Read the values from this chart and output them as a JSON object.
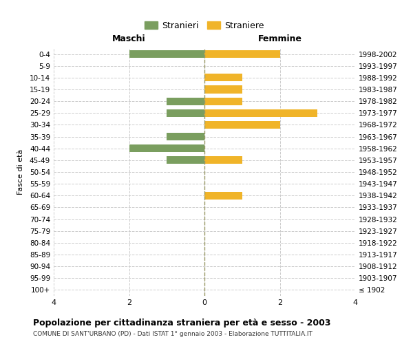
{
  "age_groups": [
    "100+",
    "95-99",
    "90-94",
    "85-89",
    "80-84",
    "75-79",
    "70-74",
    "65-69",
    "60-64",
    "55-59",
    "50-54",
    "45-49",
    "40-44",
    "35-39",
    "30-34",
    "25-29",
    "20-24",
    "15-19",
    "10-14",
    "5-9",
    "0-4"
  ],
  "birth_years": [
    "≤ 1902",
    "1903-1907",
    "1908-1912",
    "1913-1917",
    "1918-1922",
    "1923-1927",
    "1928-1932",
    "1933-1937",
    "1938-1942",
    "1943-1947",
    "1948-1952",
    "1953-1957",
    "1958-1962",
    "1963-1967",
    "1968-1972",
    "1973-1977",
    "1978-1982",
    "1983-1987",
    "1988-1992",
    "1993-1997",
    "1998-2002"
  ],
  "maschi": [
    0,
    0,
    0,
    0,
    0,
    0,
    0,
    0,
    0,
    0,
    0,
    1,
    2,
    1,
    0,
    1,
    1,
    0,
    0,
    0,
    2
  ],
  "femmine": [
    0,
    0,
    0,
    0,
    0,
    0,
    0,
    0,
    1,
    0,
    0,
    1,
    0,
    0,
    2,
    3,
    1,
    1,
    1,
    0,
    2
  ],
  "maschi_color": "#7a9e5f",
  "femmine_color": "#f0b429",
  "title": "Popolazione per cittadinanza straniera per età e sesso - 2003",
  "subtitle": "COMUNE DI SANT'URBANO (PD) - Dati ISTAT 1° gennaio 2003 - Elaborazione TUTTITALIA.IT",
  "ylabel_left": "Fasce di età",
  "xlabel_left": "Maschi",
  "xlabel_right": "Femmine",
  "legend_maschi": "Stranieri",
  "legend_femmine": "Straniere",
  "xlim": 4,
  "bg_color": "#ffffff",
  "grid_color": "#cccccc"
}
